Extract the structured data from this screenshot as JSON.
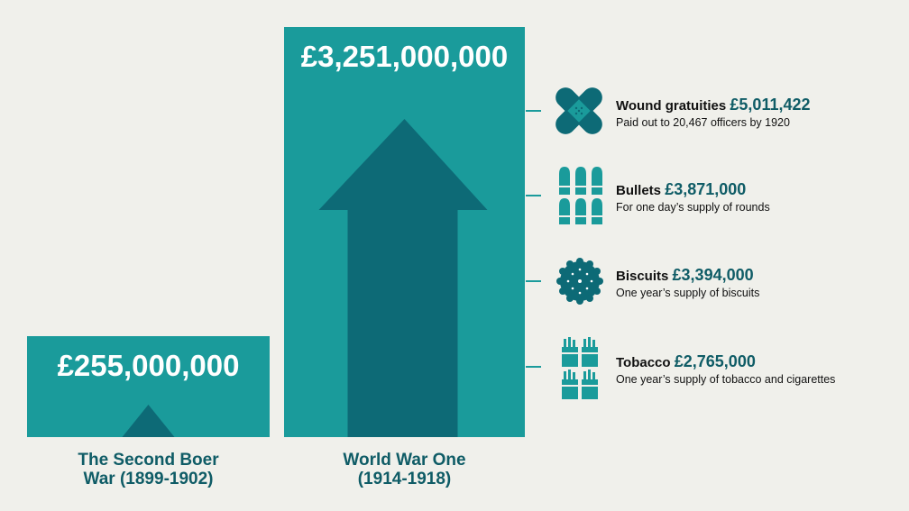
{
  "chart_data": {
    "type": "bar",
    "categories": [
      "The Second Boer War (1899-1902)",
      "World War One (1914-1918)"
    ],
    "category_lines": [
      [
        "The Second Boer",
        "War (1899-1902)"
      ],
      [
        "World War One",
        "(1914-1918)"
      ]
    ],
    "values": [
      255000000,
      3251000000
    ],
    "value_labels": [
      "£255,000,000",
      "£3,251,000,000"
    ],
    "ylim": [
      0,
      3251000000
    ],
    "bar_color": "#1a9b9b",
    "arrow_color": "#0d6a76",
    "breakdown": [
      {
        "label": "Wound gratuities",
        "amount": "£5,011,422",
        "note": "Paid out to 20,467 officers by 1920",
        "icon": "bandage-icon"
      },
      {
        "label": "Bullets",
        "amount": "£3,871,000",
        "note": "For one day’s supply of rounds",
        "icon": "bullets-icon"
      },
      {
        "label": "Biscuits",
        "amount": "£3,394,000",
        "note": "One year’s supply of biscuits",
        "icon": "biscuit-icon"
      },
      {
        "label": "Tobacco",
        "amount": "£2,765,000",
        "note": "One year’s supply of tobacco and cigarettes",
        "icon": "cigarettes-icon"
      }
    ]
  }
}
